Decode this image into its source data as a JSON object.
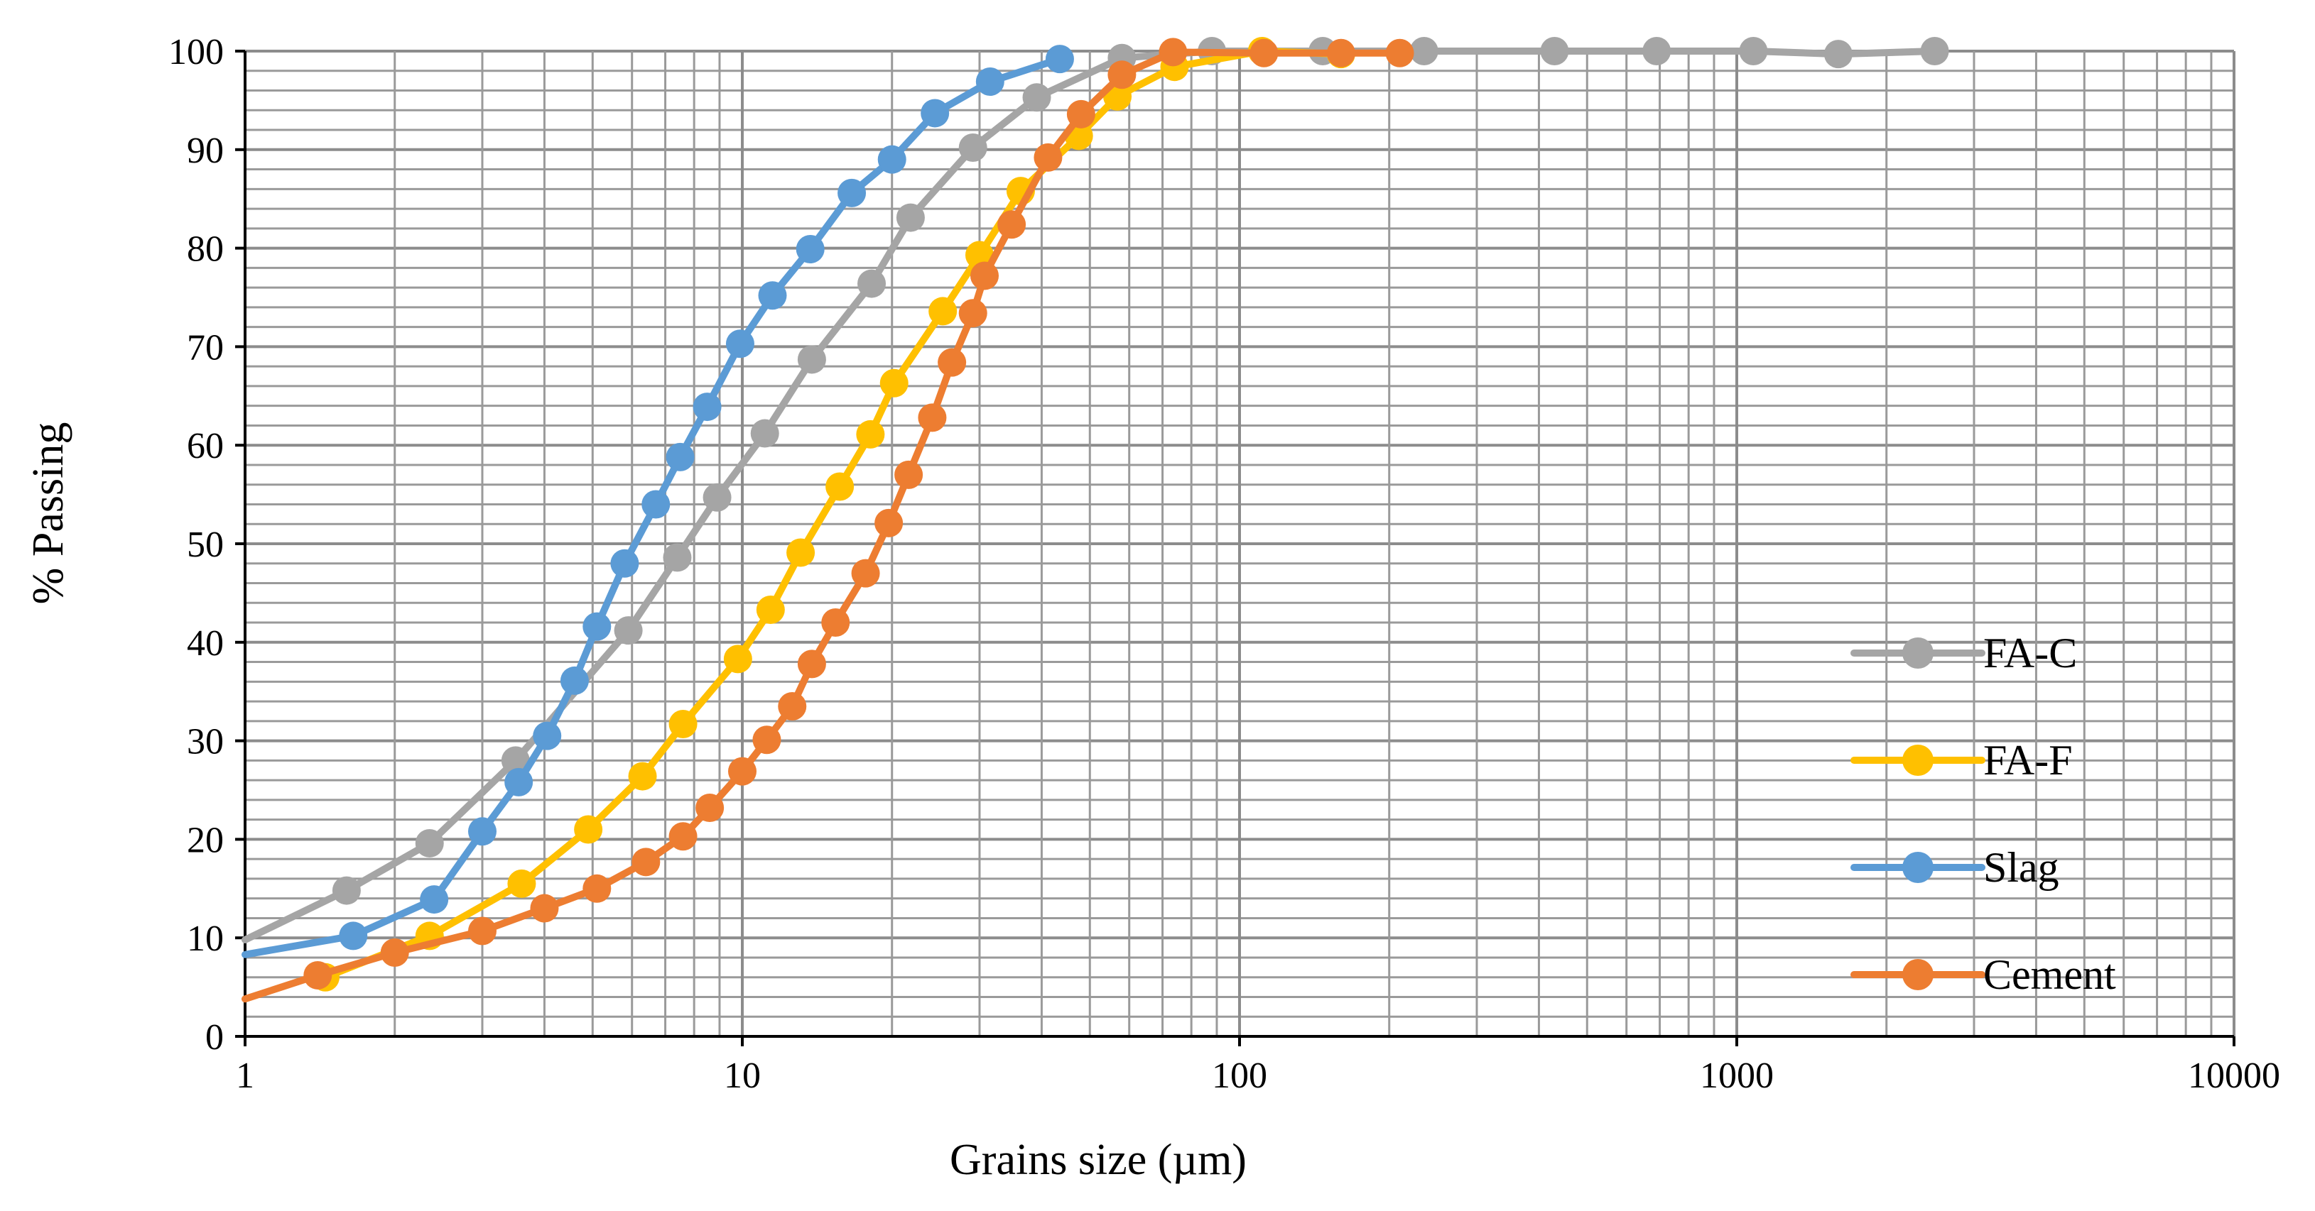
{
  "chart_data": {
    "type": "line",
    "title": "",
    "xlabel": "Grains size (µm)",
    "ylabel": "% Passing",
    "xscale": "log",
    "xlim": [
      1,
      10000
    ],
    "ylim": [
      0,
      100
    ],
    "xticks": [
      1,
      10,
      100,
      1000,
      10000
    ],
    "xtick_labels": [
      "1",
      "10",
      "100",
      "1000",
      "10000"
    ],
    "yticks": [
      0,
      10,
      20,
      30,
      40,
      50,
      60,
      70,
      80,
      90,
      100
    ],
    "ytick_labels": [
      "0",
      "10",
      "20",
      "30",
      "40",
      "50",
      "60",
      "70",
      "80",
      "90",
      "100"
    ],
    "grid": true,
    "legend_position": "right",
    "series": [
      {
        "name": "FA-C",
        "color": "#A5A5A5",
        "line_start": [
          1.0,
          9.8
        ],
        "points": [
          [
            1.6,
            14.8
          ],
          [
            2.35,
            19.6
          ],
          [
            3.5,
            28.0
          ],
          [
            5.9,
            41.2
          ],
          [
            7.4,
            48.6
          ],
          [
            8.9,
            54.7
          ],
          [
            11.1,
            61.2
          ],
          [
            13.8,
            68.7
          ],
          [
            18.2,
            76.4
          ],
          [
            21.8,
            83.1
          ],
          [
            29.1,
            90.2
          ],
          [
            39.1,
            95.3
          ],
          [
            58.0,
            99.3
          ],
          [
            88.0,
            100.0
          ],
          [
            147.0,
            100.0
          ],
          [
            235.0,
            100.0
          ],
          [
            430.0,
            100.0
          ],
          [
            690.0,
            100.0
          ],
          [
            1080.0,
            100.0
          ],
          [
            1600.0,
            99.7
          ],
          [
            2500.0,
            100.0
          ]
        ]
      },
      {
        "name": "FA-F",
        "color": "#FFC000",
        "line_start": null,
        "points": [
          [
            1.45,
            6.0
          ],
          [
            2.35,
            10.2
          ],
          [
            3.6,
            15.5
          ],
          [
            4.9,
            21.0
          ],
          [
            6.3,
            26.4
          ],
          [
            7.6,
            31.7
          ],
          [
            9.8,
            38.3
          ],
          [
            11.4,
            43.3
          ],
          [
            13.1,
            49.1
          ],
          [
            15.7,
            55.8
          ],
          [
            18.1,
            61.1
          ],
          [
            20.2,
            66.3
          ],
          [
            25.3,
            73.6
          ],
          [
            30.0,
            79.3
          ],
          [
            36.3,
            85.8
          ],
          [
            47.5,
            91.4
          ],
          [
            56.8,
            95.4
          ],
          [
            74.0,
            98.4
          ],
          [
            111.0,
            100.0
          ],
          [
            160.0,
            99.7
          ]
        ]
      },
      {
        "name": "Slag",
        "color": "#5B9BD5",
        "line_start": [
          1.0,
          8.3
        ],
        "points": [
          [
            1.65,
            10.2
          ],
          [
            2.4,
            13.9
          ],
          [
            3.0,
            20.8
          ],
          [
            3.55,
            25.8
          ],
          [
            4.05,
            30.5
          ],
          [
            4.6,
            36.1
          ],
          [
            5.1,
            41.6
          ],
          [
            5.8,
            48.0
          ],
          [
            6.7,
            54.0
          ],
          [
            7.5,
            58.8
          ],
          [
            8.5,
            63.9
          ],
          [
            9.9,
            70.3
          ],
          [
            11.5,
            75.2
          ],
          [
            13.7,
            79.9
          ],
          [
            16.6,
            85.6
          ],
          [
            20.0,
            89.0
          ],
          [
            24.4,
            93.7
          ],
          [
            31.5,
            96.9
          ],
          [
            43.5,
            99.2
          ]
        ]
      },
      {
        "name": "Cement",
        "color": "#ED7D31",
        "line_start": [
          1.0,
          3.8
        ],
        "points": [
          [
            1.4,
            6.2
          ],
          [
            2.0,
            8.5
          ],
          [
            3.0,
            10.7
          ],
          [
            4.0,
            13.0
          ],
          [
            5.1,
            15.0
          ],
          [
            6.4,
            17.7
          ],
          [
            7.6,
            20.3
          ],
          [
            8.6,
            23.2
          ],
          [
            10.0,
            26.9
          ],
          [
            11.2,
            30.1
          ],
          [
            12.6,
            33.5
          ],
          [
            13.8,
            37.8
          ],
          [
            15.4,
            42.0
          ],
          [
            17.7,
            47.0
          ],
          [
            19.7,
            52.1
          ],
          [
            21.6,
            57.0
          ],
          [
            24.1,
            62.8
          ],
          [
            26.4,
            68.4
          ],
          [
            29.1,
            73.4
          ],
          [
            30.7,
            77.2
          ],
          [
            34.8,
            82.4
          ],
          [
            41.2,
            89.2
          ],
          [
            48.0,
            93.6
          ],
          [
            58.0,
            97.6
          ],
          [
            73.5,
            99.9
          ],
          [
            112.0,
            99.8
          ],
          [
            160.0,
            99.8
          ],
          [
            210.0,
            99.8
          ]
        ]
      }
    ]
  }
}
